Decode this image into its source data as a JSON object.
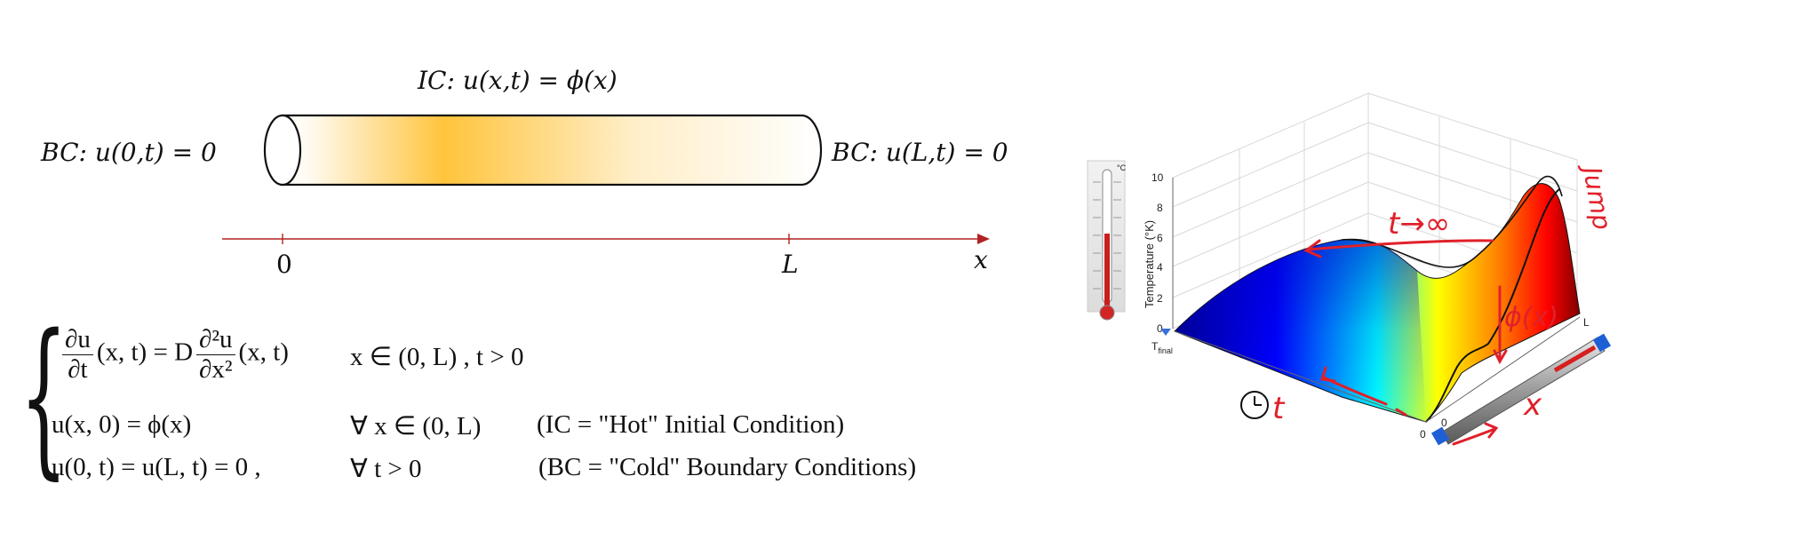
{
  "rod_diagram": {
    "ic_label": "IC: u(x,t) = ϕ(x)",
    "bc_left": "BC: u(0,t) = 0",
    "bc_right": "BC: u(L,t) = 0",
    "axis_label": "x",
    "tick_zero": "0",
    "tick_L": "L",
    "gradient_color": "#ffc43c",
    "axis_color": "#b22222"
  },
  "pde_system": {
    "line1_lhs_num": "∂u",
    "line1_lhs_den": "∂t",
    "line1_mid": "(x, t) = D",
    "line1_rhs_num": "∂²u",
    "line1_rhs_den": "∂x²",
    "line1_tail": "(x, t)",
    "line1_domain": "x ∈ (0, L) , t > 0",
    "line2_eq": "u(x, 0) = ϕ(x)",
    "line2_domain": "∀ x ∈ (0, L)",
    "line2_note": "(IC  =  \"Hot\" Initial Condition)",
    "line3_eq": "u(0, t) = u(L, t) = 0 ,",
    "line3_domain": "∀ t > 0",
    "line3_note": "(BC =  \"Cold\" Boundary Conditions)"
  },
  "surface_plot": {
    "zlabel": "Temperature (°K)",
    "z_ticks": [
      "0",
      "2",
      "4",
      "6",
      "8",
      "10"
    ],
    "t_axis_label": "T",
    "t_axis_sub": "final",
    "x_axis_end": "L",
    "x_axis_start": "0",
    "t_axis_start": "0",
    "thermometer_unit": "°C",
    "annotations": {
      "t_limit": "t→∞",
      "phi": "ϕ(x)",
      "jump": "Jump",
      "t_mark": "t",
      "x_mark": "x"
    },
    "colormap": [
      "#00008f",
      "#0000ff",
      "#00ffff",
      "#ffff00",
      "#ff8000",
      "#ff0000",
      "#800000"
    ],
    "annotation_color": "#e0202a"
  }
}
